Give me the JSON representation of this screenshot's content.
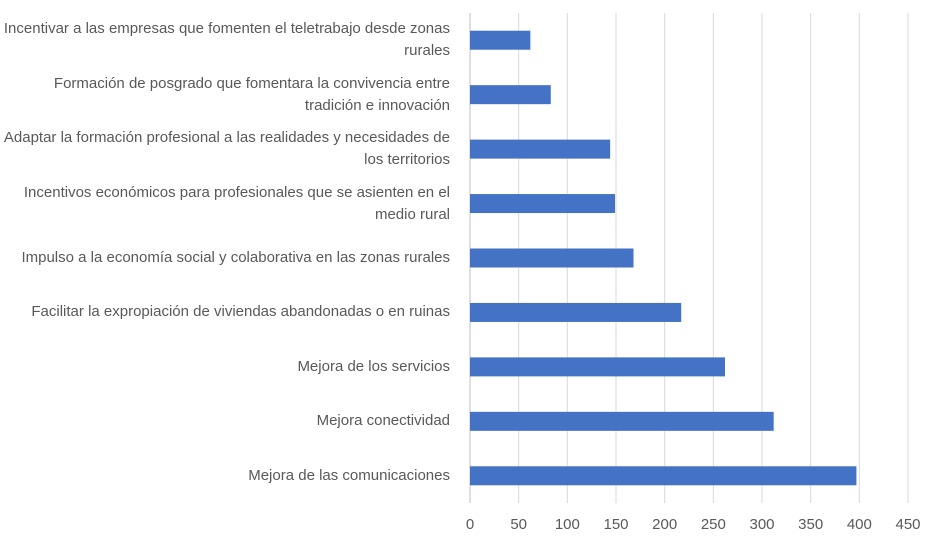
{
  "chart_data": {
    "type": "bar",
    "orientation": "horizontal",
    "categories": [
      "Incentivar a las empresas que fomenten el teletrabajo desde zonas rurales",
      "Formación de posgrado que fomentara la convivencia entre tradición e innovación",
      "Adaptar la formación profesional a las realidades y necesidades de los territorios",
      "Incentivos económicos para profesionales que se asienten en el medio rural",
      "Impulso a la economía social y colaborativa en las zonas rurales",
      "Facilitar la expropiación de viviendas abandonadas o en ruinas",
      "Mejora de los servicios",
      "Mejora conectividad",
      "Mejora de las comunicaciones"
    ],
    "values": [
      62,
      83,
      144,
      149,
      168,
      217,
      262,
      312,
      397
    ],
    "color": "#4472c4",
    "xlim": [
      0,
      450
    ],
    "xticks": [
      0,
      50,
      100,
      150,
      200,
      250,
      300,
      350,
      400,
      450
    ],
    "grid": true
  }
}
